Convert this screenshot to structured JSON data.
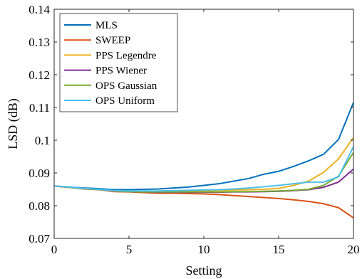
{
  "chart_data": {
    "type": "line",
    "xlabel": "Setting",
    "ylabel": "LSD (dB)",
    "xlim": [
      0,
      20
    ],
    "ylim": [
      0.07,
      0.14
    ],
    "xticks": [
      0,
      5,
      10,
      15,
      20
    ],
    "xtick_labels": [
      "0",
      "5",
      "10",
      "15",
      "20"
    ],
    "yticks": [
      0.07,
      0.08,
      0.09,
      0.1,
      0.11,
      0.12,
      0.13,
      0.14
    ],
    "ytick_labels": [
      "0.07",
      "0.08",
      "0.09",
      "0.1",
      "0.11",
      "0.12",
      "0.13",
      "0.14"
    ],
    "grid": false,
    "legend_position": "top-left",
    "x": [
      0,
      1,
      2,
      3,
      4,
      5,
      6,
      7,
      8,
      9,
      10,
      11,
      12,
      13,
      14,
      15,
      16,
      17,
      18,
      19,
      20
    ],
    "series": [
      {
        "name": "MLS",
        "color": "#0072BD",
        "values": [
          0.086,
          0.0857,
          0.0854,
          0.0852,
          0.0849,
          0.0849,
          0.085,
          0.0851,
          0.0854,
          0.0857,
          0.0862,
          0.0867,
          0.0875,
          0.0883,
          0.0896,
          0.0905,
          0.092,
          0.0937,
          0.0957,
          0.1002,
          0.1115
        ]
      },
      {
        "name": "SWEEP",
        "color": "#D95319",
        "values": [
          0.086,
          0.0856,
          0.0851,
          0.0849,
          0.0843,
          0.0842,
          0.084,
          0.0838,
          0.0838,
          0.0837,
          0.0836,
          0.0834,
          0.0831,
          0.0828,
          0.0825,
          0.0822,
          0.0818,
          0.0813,
          0.0806,
          0.0794,
          0.0763
        ]
      },
      {
        "name": "PPS Legendre",
        "color": "#EDB120",
        "values": [
          0.086,
          0.0856,
          0.0852,
          0.0849,
          0.0845,
          0.0843,
          0.0843,
          0.0843,
          0.0844,
          0.0845,
          0.0846,
          0.0847,
          0.0848,
          0.0849,
          0.085,
          0.0853,
          0.0862,
          0.0875,
          0.0902,
          0.0943,
          0.1008
        ]
      },
      {
        "name": "PPS Wiener",
        "color": "#7E2F8E",
        "values": [
          0.086,
          0.0856,
          0.0852,
          0.0849,
          0.0845,
          0.0843,
          0.0842,
          0.0841,
          0.0841,
          0.0841,
          0.0841,
          0.0841,
          0.0842,
          0.0842,
          0.0843,
          0.0844,
          0.0846,
          0.0849,
          0.0856,
          0.0872,
          0.0912
        ]
      },
      {
        "name": "OPS Gaussian",
        "color": "#77AC30",
        "values": [
          0.086,
          0.0856,
          0.0852,
          0.0849,
          0.0845,
          0.0843,
          0.0842,
          0.0842,
          0.0842,
          0.0842,
          0.0842,
          0.0842,
          0.0843,
          0.0843,
          0.0844,
          0.0845,
          0.0847,
          0.085,
          0.0862,
          0.089,
          0.0962
        ]
      },
      {
        "name": "OPS Uniform",
        "color": "#4DBEEE",
        "values": [
          0.086,
          0.0857,
          0.0853,
          0.085,
          0.0846,
          0.0845,
          0.0845,
          0.0845,
          0.0846,
          0.0847,
          0.0848,
          0.0849,
          0.0851,
          0.0854,
          0.0858,
          0.0862,
          0.0867,
          0.0872,
          0.0872,
          0.0888,
          0.098
        ]
      }
    ]
  }
}
